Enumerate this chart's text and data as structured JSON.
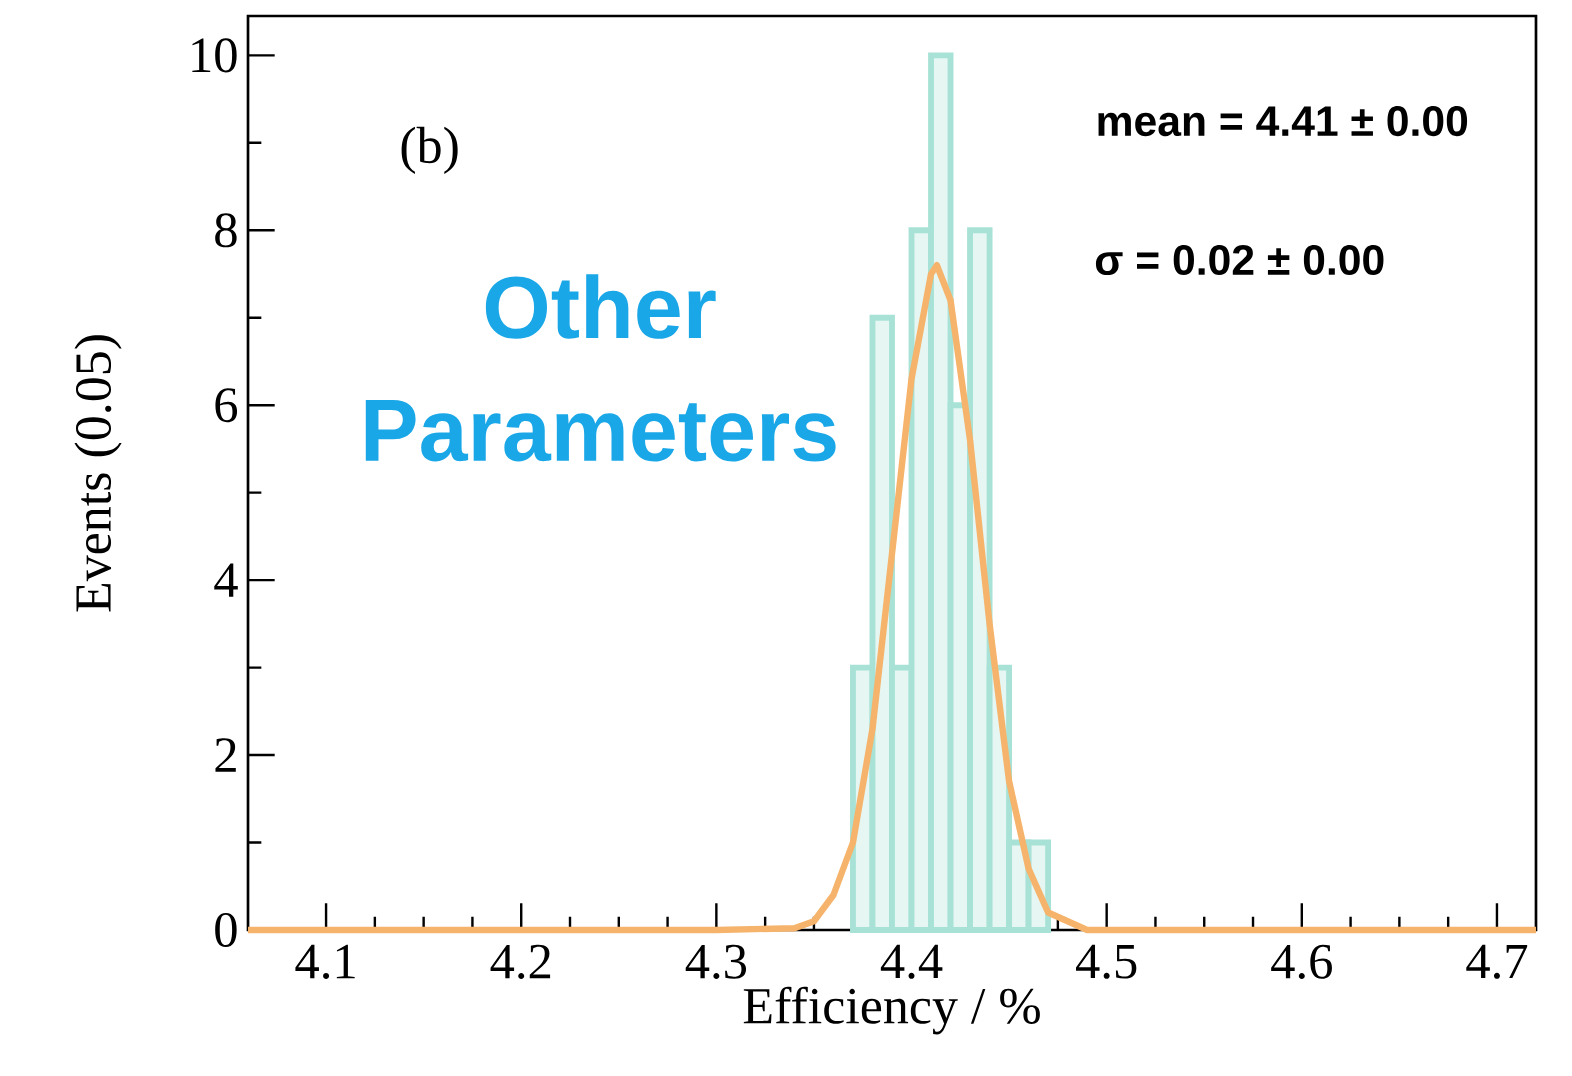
{
  "chart_data": {
    "type": "histogram",
    "xlabel": "Efficiency / %",
    "ylabel": "Events (0.05)",
    "xlim": [
      4.06,
      4.72
    ],
    "ylim": [
      0,
      10.45
    ],
    "xticks": [
      4.1,
      4.2,
      4.3,
      4.4,
      4.5,
      4.6,
      4.7
    ],
    "yticks": [
      0,
      2,
      4,
      6,
      8,
      10
    ],
    "grid": false,
    "marker": "none",
    "series": [
      {
        "color": "#a8e2d6",
        "bins": [
          4.37,
          4.38,
          4.39,
          4.4,
          4.41,
          4.42,
          4.43,
          4.44,
          4.45,
          4.46,
          4.47
        ],
        "values": [
          3,
          7,
          3,
          8,
          10,
          6,
          8,
          3,
          1,
          1
        ]
      },
      {
        "type": "line",
        "color": "#f5b36b",
        "line_style": "solid",
        "x": [
          4.06,
          4.3,
          4.34,
          4.35,
          4.36,
          4.37,
          4.38,
          4.39,
          4.4,
          4.41,
          4.413,
          4.42,
          4.43,
          4.44,
          4.45,
          4.46,
          4.47,
          4.48,
          4.49,
          4.5,
          4.72
        ],
        "values": [
          0,
          0,
          0.02,
          0.1,
          0.4,
          1.0,
          2.3,
          4.3,
          6.3,
          7.5,
          7.6,
          7.2,
          5.6,
          3.5,
          1.7,
          0.7,
          0.2,
          0.1,
          0,
          0,
          0
        ]
      }
    ],
    "annotations": [
      "(b)",
      "mean = 4.41 ± 0.00",
      "σ = 0.02 ± 0.00",
      "Other Parameters"
    ]
  }
}
